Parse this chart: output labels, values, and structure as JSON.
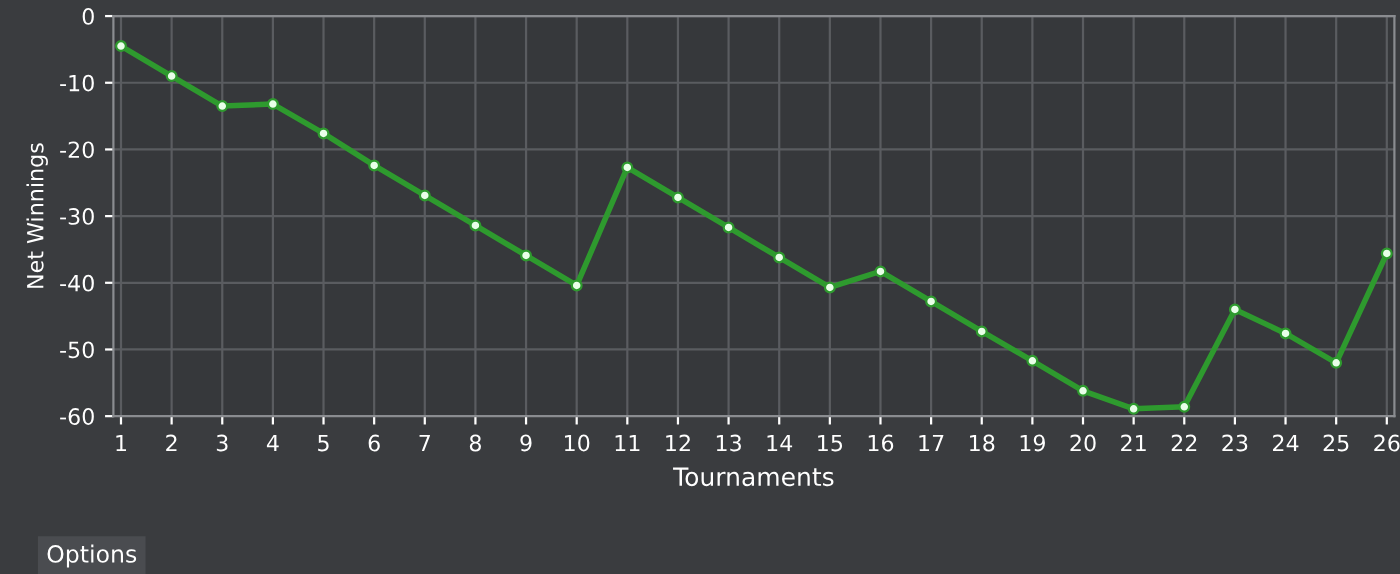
{
  "chart_data": {
    "type": "line",
    "xlabel": "Tournaments",
    "ylabel": "Net Winnings",
    "x": [
      1,
      2,
      3,
      4,
      5,
      6,
      7,
      8,
      9,
      10,
      11,
      12,
      13,
      14,
      15,
      16,
      17,
      18,
      19,
      20,
      21,
      22,
      23,
      24,
      25,
      26
    ],
    "values": [
      -4.5,
      -9.0,
      -13.5,
      -13.2,
      -17.6,
      -22.4,
      -26.9,
      -31.4,
      -35.9,
      -40.4,
      -22.7,
      -27.2,
      -31.7,
      -36.2,
      -40.7,
      -38.3,
      -42.8,
      -47.3,
      -51.7,
      -56.2,
      -58.9,
      -58.6,
      -44.0,
      -47.6,
      -52.0,
      -35.6
    ],
    "color": "#2e9a2e",
    "marker": "circle",
    "line_style": "solid",
    "grid": true,
    "xlim": [
      0.85,
      26.15
    ],
    "xticks": [
      1,
      2,
      3,
      4,
      5,
      6,
      7,
      8,
      9,
      10,
      11,
      12,
      13,
      14,
      15,
      16,
      17,
      18,
      19,
      20,
      21,
      22,
      23,
      24,
      25,
      26
    ],
    "ylim": [
      -60,
      0
    ],
    "yticks": [
      -60,
      -50,
      -40,
      -30,
      -20,
      -10,
      0
    ],
    "annotations": [
      "Options"
    ]
  }
}
